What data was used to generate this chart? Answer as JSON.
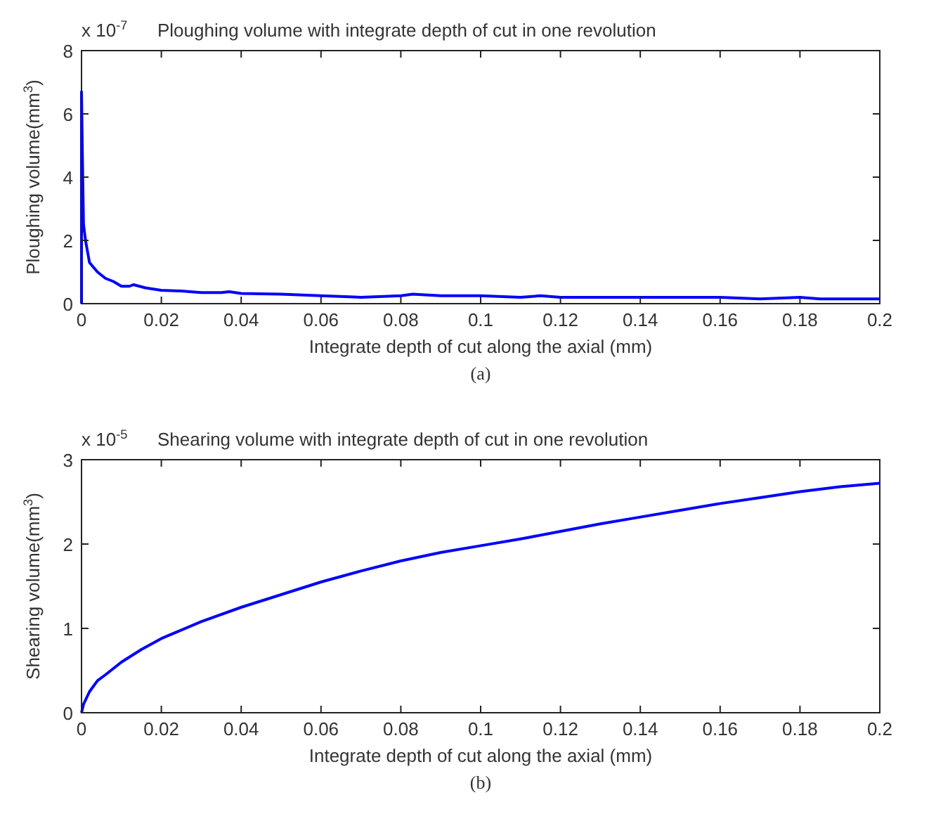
{
  "chart_data": [
    {
      "type": "line",
      "title": "Ploughing volume with integrate depth of cut in one revolution",
      "xlabel": "Integrate depth of cut along the axial  (mm)",
      "ylabel": "Ploughing volume(mm$^{3}$)",
      "annotations": [
        "x 10$^{-7}$",
        "(a)"
      ],
      "xlim": [
        0,
        0.2
      ],
      "ylim": [
        0,
        8
      ],
      "xticks": [
        0,
        0.02,
        0.04,
        0.06,
        0.08,
        0.1,
        0.12,
        0.14,
        0.16,
        0.18,
        0.2
      ],
      "yticks": [
        0,
        2,
        4,
        6,
        8
      ],
      "grid": false,
      "series": [
        {
          "color": "#0000ff",
          "x": [
            0,
            0,
            0.0003,
            0.0005,
            0.001,
            0.002,
            0.003,
            0.004,
            0.006,
            0.008,
            0.01,
            0.012,
            0.013,
            0.016,
            0.02,
            0.025,
            0.03,
            0.035,
            0.037,
            0.04,
            0.05,
            0.06,
            0.07,
            0.08,
            0.083,
            0.09,
            0.1,
            0.11,
            0.115,
            0.12,
            0.14,
            0.16,
            0.17,
            0.18,
            0.185,
            0.2
          ],
          "values": [
            0,
            6.7,
            4.0,
            2.5,
            2.0,
            1.3,
            1.15,
            1.0,
            0.8,
            0.7,
            0.55,
            0.55,
            0.6,
            0.5,
            0.42,
            0.4,
            0.35,
            0.35,
            0.38,
            0.32,
            0.3,
            0.25,
            0.2,
            0.25,
            0.3,
            0.25,
            0.25,
            0.2,
            0.25,
            0.2,
            0.2,
            0.2,
            0.15,
            0.2,
            0.15,
            0.15
          ]
        }
      ]
    },
    {
      "type": "line",
      "title": "Shearing volume with integrate depth of cut in one revolution",
      "xlabel": "Integrate depth of cut along the axial (mm)",
      "ylabel": "Shearing volume(mm$^{3}$)",
      "annotations": [
        "x 10$^{-5}$",
        "(b)"
      ],
      "xlim": [
        0,
        0.2
      ],
      "ylim": [
        0,
        3
      ],
      "xticks": [
        0,
        0.02,
        0.04,
        0.06,
        0.08,
        0.1,
        0.12,
        0.14,
        0.16,
        0.18,
        0.2
      ],
      "yticks": [
        0,
        1,
        2,
        3
      ],
      "grid": false,
      "series": [
        {
          "color": "#0000ff",
          "x": [
            0,
            0.0005,
            0.002,
            0.004,
            0.006,
            0.01,
            0.015,
            0.02,
            0.03,
            0.04,
            0.05,
            0.06,
            0.07,
            0.08,
            0.09,
            0.1,
            0.11,
            0.12,
            0.13,
            0.14,
            0.15,
            0.16,
            0.17,
            0.18,
            0.19,
            0.2
          ],
          "values": [
            0,
            0.1,
            0.25,
            0.38,
            0.45,
            0.6,
            0.75,
            0.88,
            1.08,
            1.25,
            1.4,
            1.55,
            1.68,
            1.8,
            1.9,
            1.98,
            2.06,
            2.15,
            2.24,
            2.32,
            2.4,
            2.48,
            2.55,
            2.62,
            2.68,
            2.72
          ]
        }
      ]
    }
  ]
}
